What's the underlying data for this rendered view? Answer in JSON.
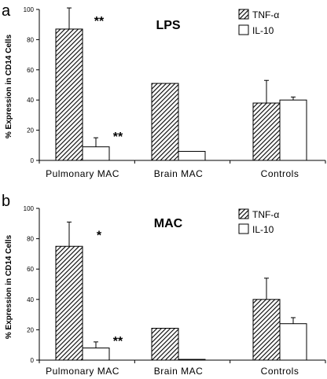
{
  "chart_data": [
    {
      "panel": "a",
      "type": "bar",
      "title": "LPS",
      "ylabel": "% Expression in CD14 Cells",
      "xlabel": "",
      "ylim": [
        0,
        100
      ],
      "yticks": [
        "0",
        "20",
        "40",
        "60",
        "80",
        "100"
      ],
      "categories": [
        "Pulmonary MAC",
        "Brain MAC",
        "Controls"
      ],
      "series": [
        {
          "name": "TNF-α",
          "values": [
            87,
            51,
            38
          ],
          "errors": [
            14,
            0,
            15
          ],
          "fill": "hatched"
        },
        {
          "name": "IL-10",
          "values": [
            9,
            6,
            40
          ],
          "errors": [
            6,
            0,
            2
          ],
          "fill": "white"
        }
      ],
      "annotations": [
        {
          "text": "**",
          "category": 0,
          "series": 0
        },
        {
          "text": "**",
          "category": 0,
          "series": 1
        }
      ],
      "legend": "top-right",
      "grid": false
    },
    {
      "panel": "b",
      "type": "bar",
      "title": "MAC",
      "ylabel": "% Expression in CD14 Cells",
      "xlabel": "",
      "ylim": [
        0,
        100
      ],
      "yticks": [
        "0",
        "20",
        "40",
        "60",
        "80",
        "100"
      ],
      "categories": [
        "Pulmonary MAC",
        "Brain MAC",
        "Controls"
      ],
      "series": [
        {
          "name": "TNF-α",
          "values": [
            75,
            21,
            40
          ],
          "errors": [
            16,
            0,
            14
          ],
          "fill": "hatched"
        },
        {
          "name": "IL-10",
          "values": [
            8,
            0.5,
            24
          ],
          "errors": [
            4,
            0,
            4
          ],
          "fill": "white"
        }
      ],
      "annotations": [
        {
          "text": "*",
          "category": 0,
          "series": 0
        },
        {
          "text": "**",
          "category": 0,
          "series": 1
        }
      ],
      "legend": "top-right",
      "grid": false
    }
  ]
}
